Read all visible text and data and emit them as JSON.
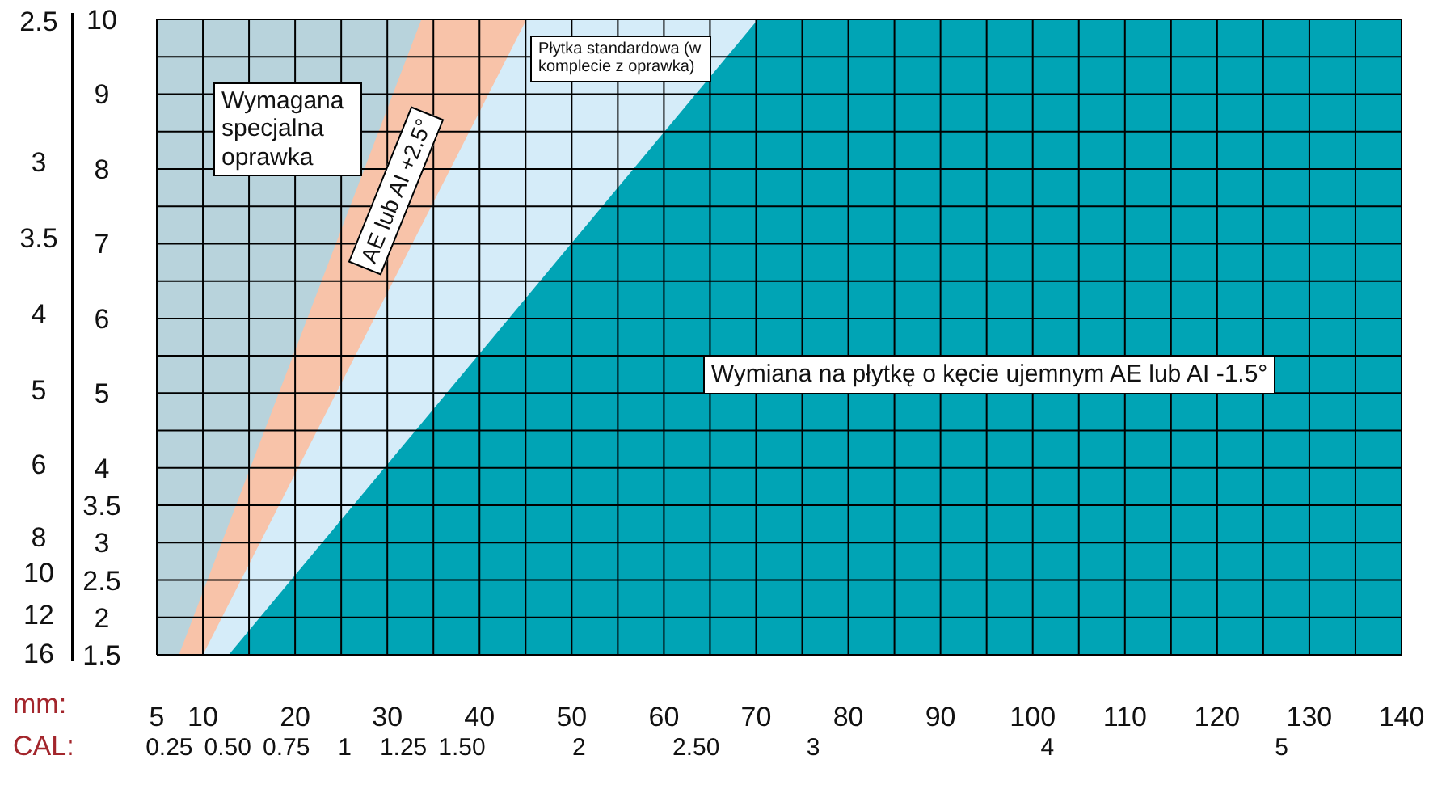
{
  "chart_data": {
    "type": "area",
    "xlabel": "mm:",
    "x2label": "CAL:",
    "xlim": [
      5,
      140
    ],
    "xticks": [
      5,
      10,
      {
        "value": 15,
        "label": null
      },
      20,
      {
        "value": 25,
        "label": null
      },
      30,
      {
        "value": 35,
        "label": null
      },
      40,
      {
        "value": 45,
        "label": null
      },
      50,
      {
        "value": 55,
        "label": null
      },
      60,
      {
        "value": 65,
        "label": null
      },
      70,
      {
        "value": 75,
        "label": null
      },
      80,
      {
        "value": 85,
        "label": null
      },
      90,
      {
        "value": 95,
        "label": null
      },
      100,
      {
        "value": 105,
        "label": null
      },
      110,
      {
        "value": 115,
        "label": null
      },
      120,
      {
        "value": 125,
        "label": null
      },
      130,
      {
        "value": 135,
        "label": null
      },
      140
    ],
    "x2lim": [
      0.197,
      5.512
    ],
    "x2ticks": [
      0.25,
      {
        "value": 0.5,
        "label": "0.50"
      },
      0.75,
      1,
      1.25,
      {
        "value": 1.5,
        "label": "1.50"
      },
      2,
      {
        "value": 2.5,
        "label": "2.50"
      },
      3,
      4,
      5
    ],
    "ylim": [
      1.5,
      10
    ],
    "yticks": [
      1.5,
      2,
      2.5,
      3,
      3.5,
      4,
      {
        "value": 4.5,
        "label": null
      },
      5,
      {
        "value": 5.5,
        "label": null
      },
      6,
      {
        "value": 6.5,
        "label": null
      },
      7,
      {
        "value": 7.5,
        "label": null
      },
      8,
      {
        "value": 8.5,
        "label": null
      },
      9,
      {
        "value": 9.5,
        "label": null
      },
      10
    ],
    "grid": true,
    "series": [
      {
        "color": "#b8d3dc",
        "x": [
          5,
          140
        ],
        "values": [
          10,
          10
        ]
      },
      {
        "color": "#f8c3a9",
        "x": [
          7.4,
          33.7,
          140
        ],
        "values": [
          1.5,
          10,
          10
        ]
      },
      {
        "color": "#d5ecf9",
        "x": [
          10,
          45.1,
          140
        ],
        "values": [
          1.5,
          10,
          10
        ]
      },
      {
        "color": "#00a4b5",
        "x": [
          12.8,
          70.2,
          140
        ],
        "values": [
          1.5,
          10,
          10
        ]
      }
    ],
    "annotations": [
      "Wymagana specjalna oprawka",
      "AE lub AI +2.5°",
      "Płytka standardowa (w komplecie z oprawka)",
      "Wymiana na płytkę o kęcie ujemnym AE lub AI -1.5°",
      "2.5",
      "3",
      "3.5",
      "4",
      "5",
      "6",
      "8",
      "10",
      "12",
      "16"
    ]
  }
}
